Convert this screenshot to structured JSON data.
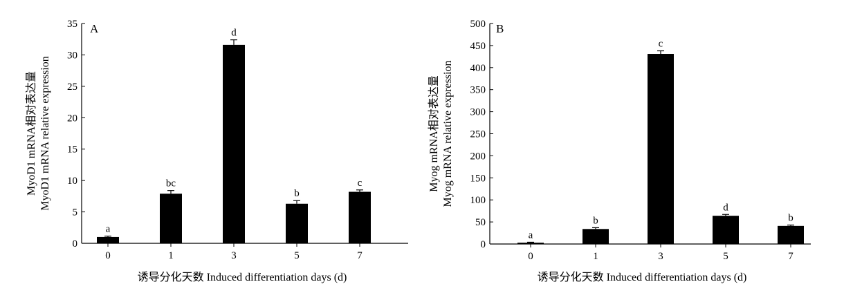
{
  "chart_data": [
    {
      "type": "bar",
      "panel": "A",
      "categories": [
        "0",
        "1",
        "3",
        "5",
        "7"
      ],
      "values": [
        1.0,
        7.9,
        31.6,
        6.3,
        8.2
      ],
      "errors": [
        0.15,
        0.5,
        0.8,
        0.5,
        0.3
      ],
      "annotations": [
        "a",
        "bc",
        "d",
        "b",
        "c"
      ],
      "xlabel": "诱导分化天数 Induced differentiation days (d)",
      "ylabel": [
        "MyoD1 mRNA相对表达量",
        "MyoD1 mRNA relative expression"
      ],
      "ylim": [
        0,
        35
      ],
      "yticks": [
        0,
        5,
        10,
        15,
        20,
        25,
        30,
        35
      ],
      "grid": false,
      "colors": {
        "bar": "#000000"
      }
    },
    {
      "type": "bar",
      "panel": "B",
      "categories": [
        "0",
        "1",
        "3",
        "5",
        "7"
      ],
      "values": [
        3,
        34,
        431,
        64,
        41
      ],
      "errors": [
        1,
        3,
        7,
        3,
        2
      ],
      "annotations": [
        "a",
        "b",
        "c",
        "d",
        "b"
      ],
      "xlabel": "诱导分化天数 Induced differentiation days (d)",
      "ylabel": [
        "Myog mRNA相对表达量",
        "Myog mRNA relative expression"
      ],
      "ylim": [
        0,
        500
      ],
      "yticks": [
        0,
        50,
        100,
        150,
        200,
        250,
        300,
        350,
        400,
        450,
        500
      ],
      "grid": false,
      "colors": {
        "bar": "#000000"
      }
    }
  ]
}
